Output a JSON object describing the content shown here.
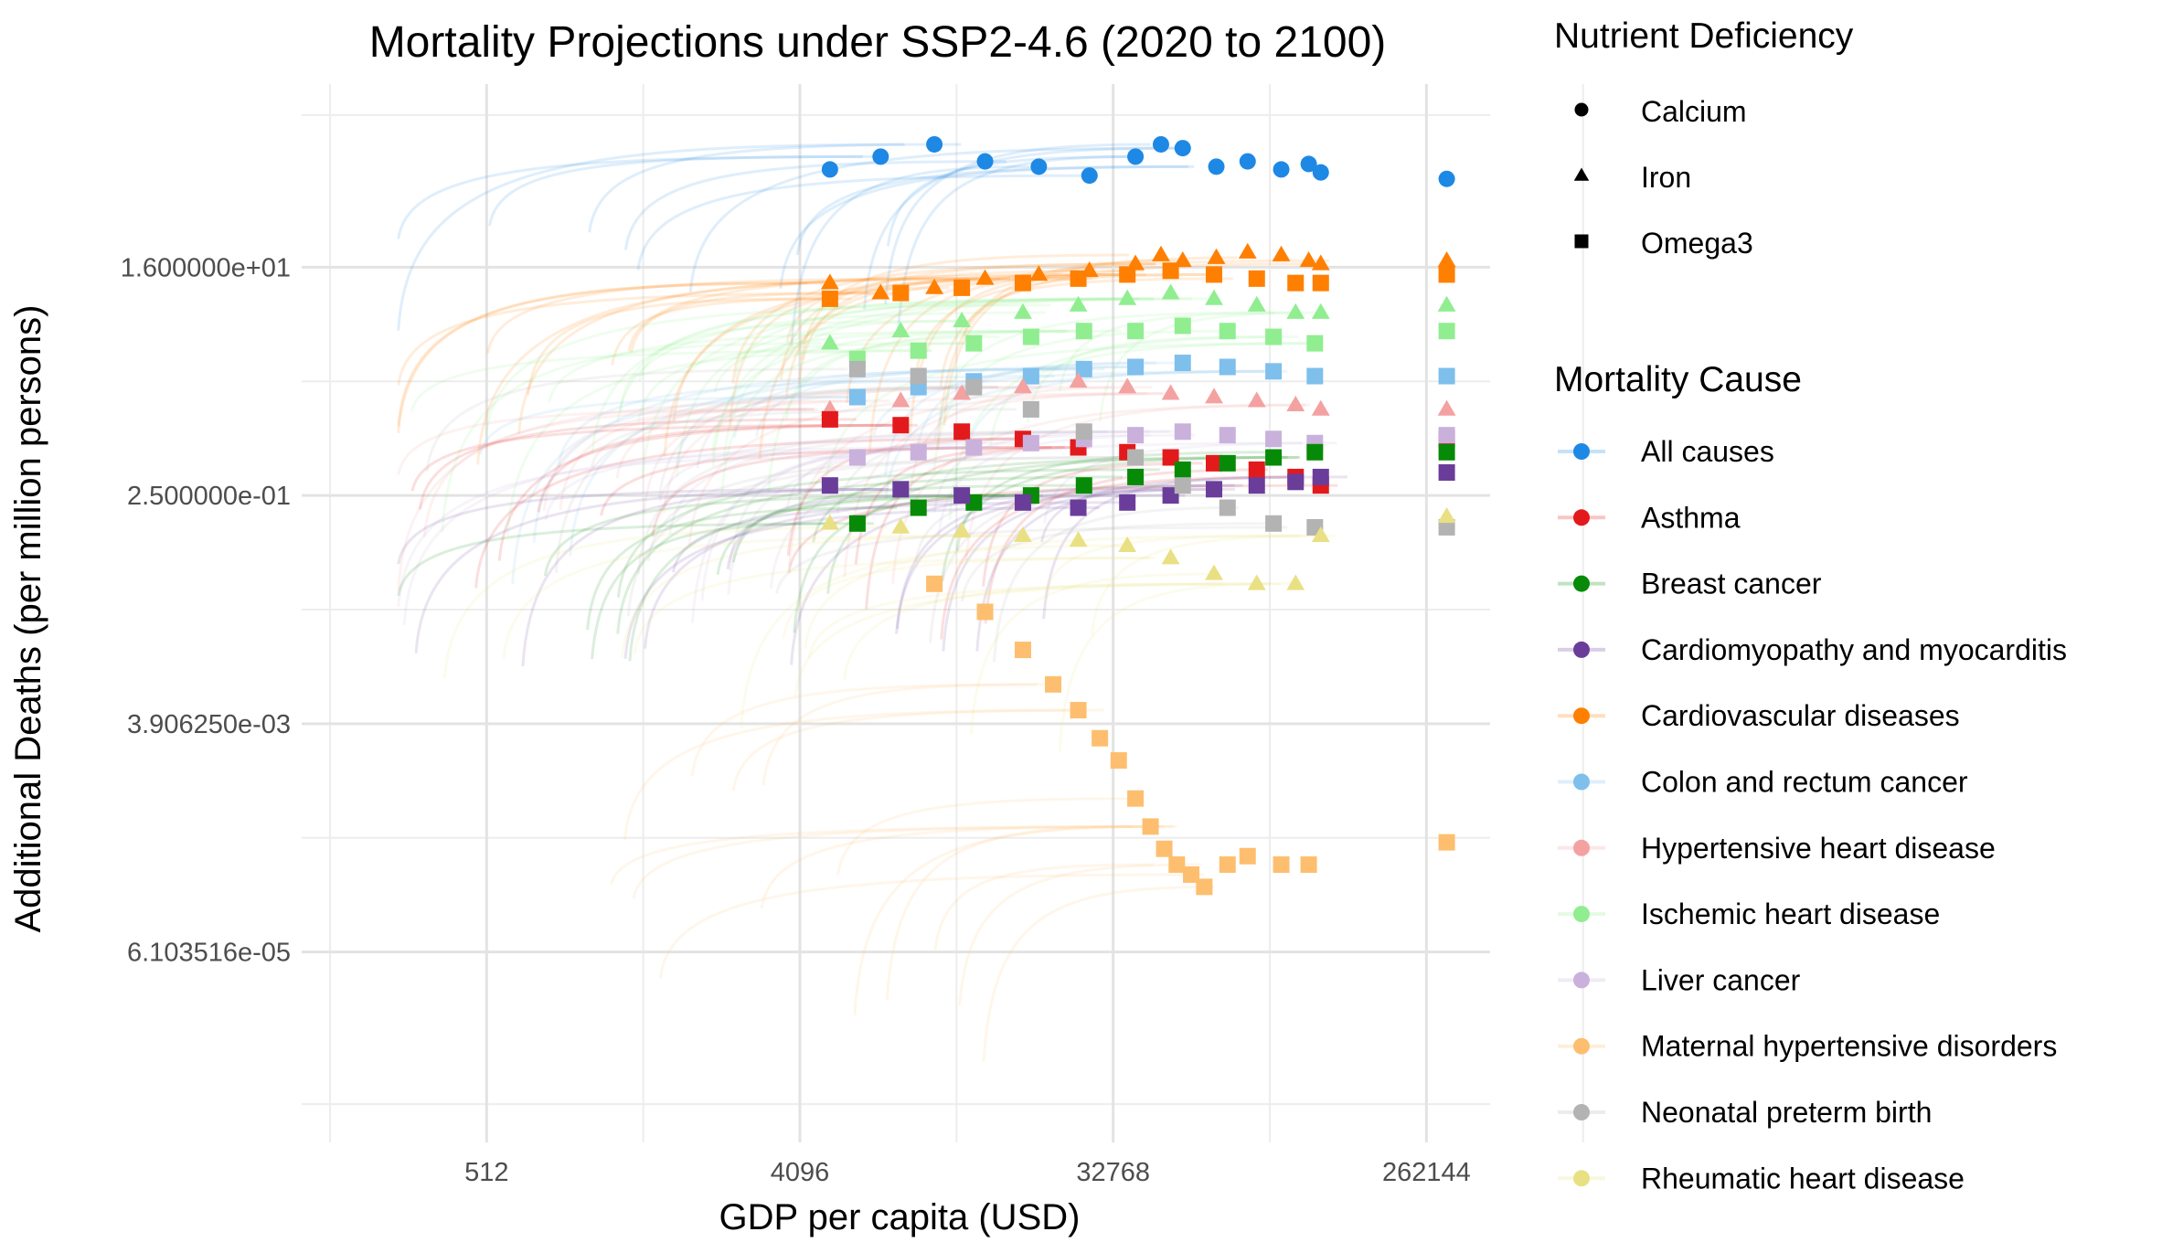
{
  "chart_data": {
    "type": "scatter",
    "title": "Mortality Projections under SSP2-4.6 (2020 to 2100)",
    "xlabel": "GDP per capita (USD)",
    "ylabel": "Additional Deaths (per million persons)",
    "x_scale": "log2",
    "y_scale": "log2",
    "xlim": [
      150,
      400000
    ],
    "ylim": [
      1.9e-06,
      450
    ],
    "x_ticks": [
      {
        "value": 512,
        "label": "512"
      },
      {
        "value": 4096,
        "label": "4096"
      },
      {
        "value": 32768,
        "label": "32768"
      },
      {
        "value": 262144,
        "label": "262144"
      }
    ],
    "y_ticks": [
      {
        "value": 16,
        "label": "1.600000e+01"
      },
      {
        "value": 0.25,
        "label": "2.500000e-01"
      },
      {
        "value": 0.00390625,
        "label": "3.906250e-03"
      },
      {
        "value": 6.103516e-05,
        "label": "6.103516e-05"
      }
    ],
    "grid": true,
    "legend_position": "right",
    "shape_legend": {
      "title": "Nutrient Deficiency",
      "items": [
        {
          "label": "Calcium",
          "shape": "circle"
        },
        {
          "label": "Iron",
          "shape": "triangle"
        },
        {
          "label": "Omega3",
          "shape": "square"
        }
      ]
    },
    "color_legend": {
      "title": "Mortality Cause",
      "items": [
        {
          "label": "All causes",
          "color": "#1e88e5"
        },
        {
          "label": "Asthma",
          "color": "#e31a1c"
        },
        {
          "label": "Breast cancer",
          "color": "#078a07"
        },
        {
          "label": "Cardiomyopathy and myocarditis",
          "color": "#6a3d9a"
        },
        {
          "label": "Cardiovascular diseases",
          "color": "#ff7f00"
        },
        {
          "label": "Colon and rectum cancer",
          "color": "#7ebfec"
        },
        {
          "label": "Hypertensive heart disease",
          "color": "#f4a1a1"
        },
        {
          "label": "Ischemic heart disease",
          "color": "#90ee90"
        },
        {
          "label": "Liver cancer",
          "color": "#c9b1dc"
        },
        {
          "label": "Maternal hypertensive disorders",
          "color": "#fdbf6f"
        },
        {
          "label": "Neonatal preterm birth",
          "color": "#b3b3b3"
        },
        {
          "label": "Rheumatic heart disease",
          "color": "#e9e083"
        }
      ]
    },
    "series": [
      {
        "name": "All causes",
        "shape": "circle",
        "color": "#1e88e5",
        "x": [
          5000,
          7000,
          10000,
          14000,
          20000,
          28000,
          38000,
          45000,
          52000,
          65000,
          80000,
          100000,
          120000,
          130000
        ],
        "y": [
          95,
          120,
          150,
          110,
          100,
          85,
          120,
          150,
          140,
          100,
          110,
          95,
          105,
          90
        ],
        "end_x": 300000,
        "end_y": 80
      },
      {
        "name": "Cardiovascular diseases",
        "shape": "triangle",
        "color": "#ff7f00",
        "x": [
          5000,
          7000,
          10000,
          14000,
          20000,
          28000,
          38000,
          45000,
          52000,
          65000,
          80000,
          100000,
          120000,
          130000
        ],
        "y": [
          12,
          10,
          11,
          13,
          14,
          15,
          17,
          20,
          18,
          19,
          21,
          20,
          18,
          17
        ],
        "end_x": 300000,
        "end_y": 18
      },
      {
        "name": "Cardiovascular diseases",
        "shape": "square",
        "color": "#ff7f00",
        "x": [
          5000,
          8000,
          12000,
          18000,
          26000,
          36000,
          48000,
          64000,
          85000,
          110000,
          130000
        ],
        "y": [
          9,
          10,
          11,
          12,
          13,
          14,
          15,
          14,
          13,
          12,
          12
        ],
        "end_x": 300000,
        "end_y": 14
      },
      {
        "name": "Ischemic heart disease",
        "shape": "triangle",
        "color": "#90ee90",
        "x": [
          5000,
          8000,
          12000,
          18000,
          26000,
          36000,
          48000,
          64000,
          85000,
          110000,
          130000
        ],
        "y": [
          4,
          5,
          6,
          7,
          8,
          9,
          10,
          9,
          8,
          7,
          7
        ],
        "end_x": 300000,
        "end_y": 8
      },
      {
        "name": "Ischemic heart disease",
        "shape": "square",
        "color": "#90ee90",
        "x": [
          6000,
          9000,
          13000,
          19000,
          27000,
          38000,
          52000,
          70000,
          95000,
          125000
        ],
        "y": [
          3,
          3.5,
          4,
          4.5,
          5,
          5,
          5.5,
          5,
          4.5,
          4
        ],
        "end_x": 300000,
        "end_y": 5
      },
      {
        "name": "Colon and rectum cancer",
        "shape": "square",
        "color": "#7ebfec",
        "x": [
          6000,
          9000,
          13000,
          19000,
          27000,
          38000,
          52000,
          70000,
          95000,
          125000
        ],
        "y": [
          1.5,
          1.8,
          2,
          2.2,
          2.5,
          2.6,
          2.8,
          2.6,
          2.4,
          2.2
        ],
        "end_x": 300000,
        "end_y": 2.2
      },
      {
        "name": "Hypertensive heart disease",
        "shape": "triangle",
        "color": "#f4a1a1",
        "x": [
          5000,
          8000,
          12000,
          18000,
          26000,
          36000,
          48000,
          64000,
          85000,
          110000,
          130000
        ],
        "y": [
          1.2,
          1.4,
          1.6,
          1.8,
          2,
          1.8,
          1.6,
          1.5,
          1.4,
          1.3,
          1.2
        ],
        "end_x": 300000,
        "end_y": 1.2
      },
      {
        "name": "Asthma",
        "shape": "square",
        "color": "#e31a1c",
        "x": [
          5000,
          8000,
          12000,
          18000,
          26000,
          36000,
          48000,
          64000,
          85000,
          110000,
          130000
        ],
        "y": [
          1.0,
          0.9,
          0.8,
          0.7,
          0.6,
          0.55,
          0.5,
          0.45,
          0.4,
          0.35,
          0.3
        ],
        "end_x": 300000,
        "end_y": 0.7
      },
      {
        "name": "Liver cancer",
        "shape": "square",
        "color": "#c9b1dc",
        "x": [
          6000,
          9000,
          13000,
          19000,
          27000,
          38000,
          52000,
          70000,
          95000,
          125000
        ],
        "y": [
          0.5,
          0.55,
          0.6,
          0.65,
          0.7,
          0.75,
          0.8,
          0.75,
          0.7,
          0.65
        ],
        "end_x": 300000,
        "end_y": 0.75
      },
      {
        "name": "Breast cancer",
        "shape": "square",
        "color": "#078a07",
        "x": [
          6000,
          9000,
          13000,
          19000,
          27000,
          38000,
          52000,
          70000,
          95000,
          125000
        ],
        "y": [
          0.15,
          0.2,
          0.22,
          0.25,
          0.3,
          0.35,
          0.4,
          0.45,
          0.5,
          0.55
        ],
        "end_x": 300000,
        "end_y": 0.55
      },
      {
        "name": "Cardiomyopathy and myocarditis",
        "shape": "square",
        "color": "#6a3d9a",
        "x": [
          5000,
          8000,
          12000,
          18000,
          26000,
          36000,
          48000,
          64000,
          85000,
          110000,
          130000
        ],
        "y": [
          0.3,
          0.28,
          0.25,
          0.22,
          0.2,
          0.22,
          0.25,
          0.28,
          0.3,
          0.32,
          0.35
        ],
        "end_x": 300000,
        "end_y": 0.38
      },
      {
        "name": "Neonatal preterm birth",
        "shape": "square",
        "color": "#b3b3b3",
        "x": [
          6000,
          9000,
          13000,
          19000,
          27000,
          38000,
          52000,
          70000,
          95000,
          125000
        ],
        "y": [
          2.5,
          2.2,
          1.8,
          1.2,
          0.8,
          0.5,
          0.3,
          0.2,
          0.15,
          0.14
        ],
        "end_x": 300000,
        "end_y": 0.14
      },
      {
        "name": "Rheumatic heart disease",
        "shape": "triangle",
        "color": "#e9e083",
        "x": [
          5000,
          8000,
          12000,
          18000,
          26000,
          36000,
          48000,
          64000,
          85000,
          110000,
          130000
        ],
        "y": [
          0.15,
          0.14,
          0.13,
          0.12,
          0.11,
          0.1,
          0.08,
          0.06,
          0.05,
          0.05,
          0.12
        ],
        "end_x": 300000,
        "end_y": 0.17
      },
      {
        "name": "Maternal hypertensive disorders",
        "shape": "square",
        "color": "#fdbf6f",
        "x": [
          10000,
          14000,
          18000,
          22000,
          26000,
          30000,
          34000,
          38000,
          42000,
          46000,
          50000,
          55000,
          60000,
          70000,
          80000,
          100000,
          120000
        ],
        "y": [
          0.05,
          0.03,
          0.015,
          0.008,
          0.005,
          0.003,
          0.002,
          0.001,
          0.0006,
          0.0004,
          0.0003,
          0.00025,
          0.0002,
          0.0003,
          0.00035,
          0.0003,
          0.0003
        ],
        "end_x": 300000,
        "end_y": 0.00045
      }
    ]
  }
}
